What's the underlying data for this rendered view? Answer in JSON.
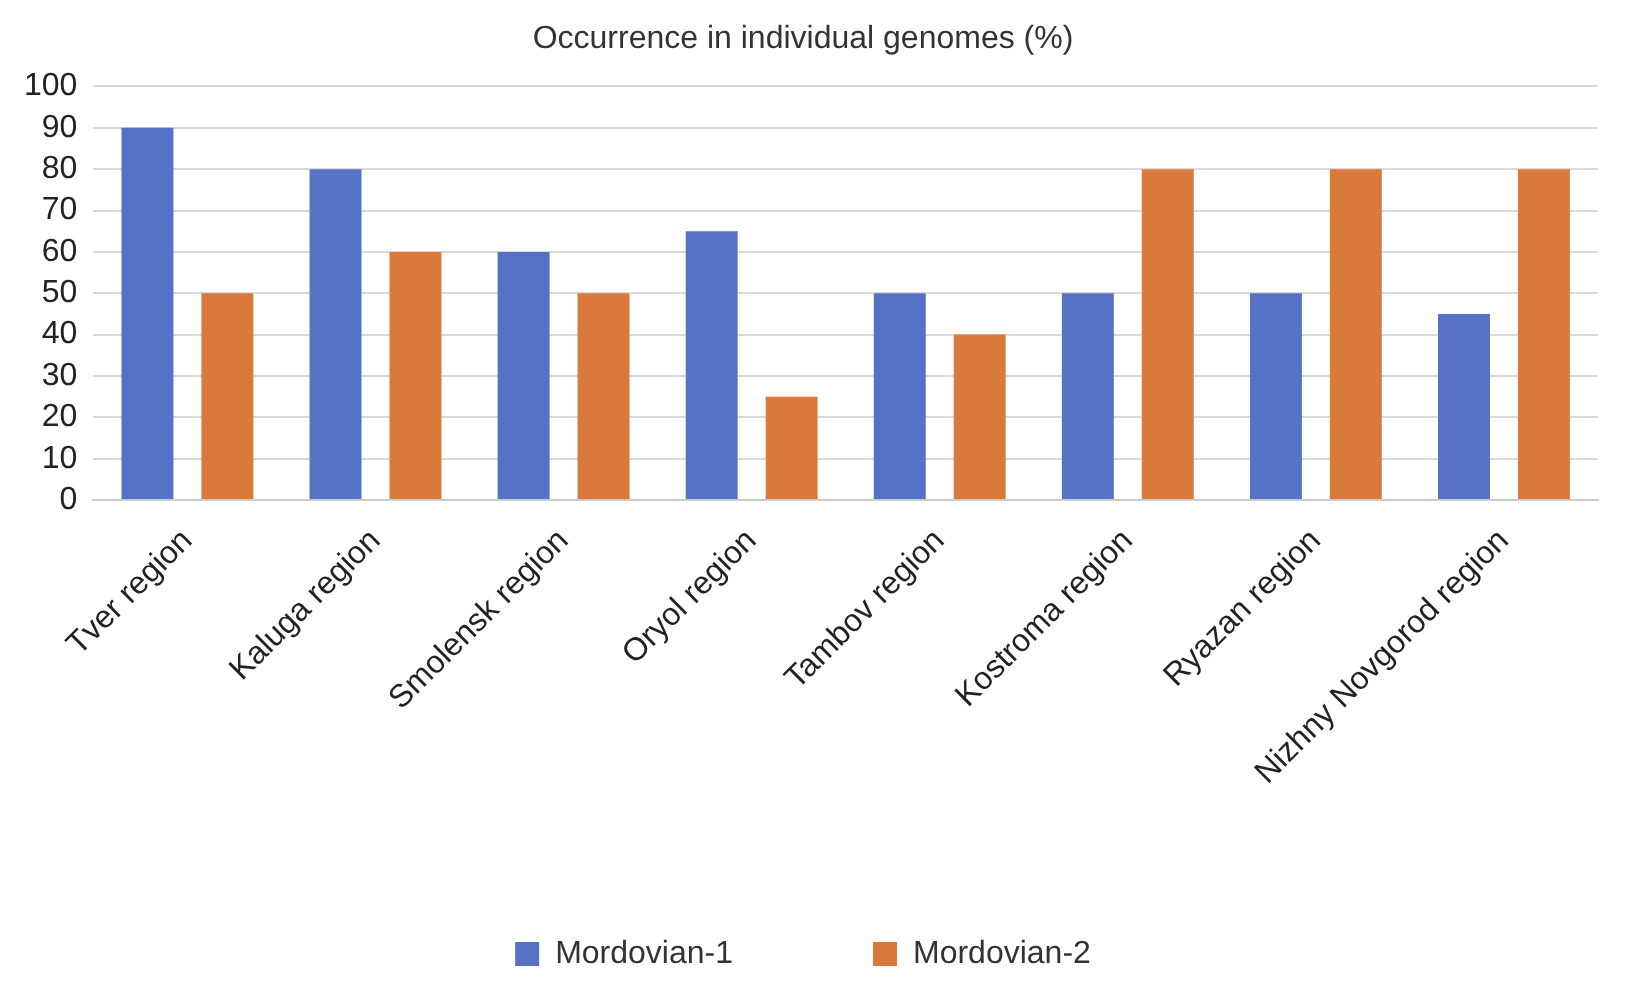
{
  "chart_data": {
    "type": "bar",
    "title": "Occurrence in individual genomes (%)",
    "categories": [
      "Tver region",
      "Kaluga region",
      "Smolensk region",
      "Oryol region",
      "Tambov region",
      "Kostroma region",
      "Ryazan region",
      "Nizhny Novgorod region"
    ],
    "series": [
      {
        "name": "Mordovian-1",
        "color": "#5572c7",
        "values": [
          90,
          80,
          60,
          65,
          50,
          50,
          50,
          45
        ]
      },
      {
        "name": "Mordovian-2",
        "color": "#d97a3b",
        "values": [
          50,
          60,
          50,
          25,
          40,
          80,
          80,
          80
        ]
      }
    ],
    "ylim": [
      0,
      100
    ],
    "yticks": [
      0,
      10,
      20,
      30,
      40,
      50,
      60,
      70,
      80,
      90,
      100
    ],
    "grid": "y",
    "legend": "bottom"
  }
}
